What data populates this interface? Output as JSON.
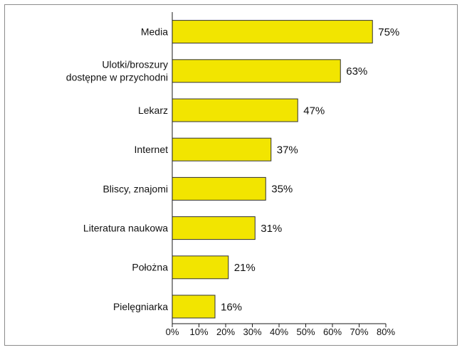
{
  "chart_data": {
    "type": "bar",
    "orientation": "horizontal",
    "categories": [
      "Media",
      "Ulotki/broszury\ndostępne w przychodni",
      "Lekarz",
      "Internet",
      "Bliscy, znajomi",
      "Literatura naukowa",
      "Położna",
      "Pielęgniarka"
    ],
    "values": [
      75,
      63,
      47,
      37,
      35,
      31,
      21,
      16
    ],
    "data_labels": [
      "75%",
      "63%",
      "47%",
      "37%",
      "35%",
      "31%",
      "21%",
      "16%"
    ],
    "xlim": [
      0,
      80
    ],
    "xticks": [
      0,
      10,
      20,
      30,
      40,
      50,
      60,
      70,
      80
    ],
    "xtick_labels": [
      "0%",
      "10%",
      "20%",
      "30%",
      "40%",
      "50%",
      "60%",
      "70%",
      "80%"
    ],
    "grid": false,
    "bar_color": "#f2e500",
    "bar_edge_color": "#333333"
  }
}
